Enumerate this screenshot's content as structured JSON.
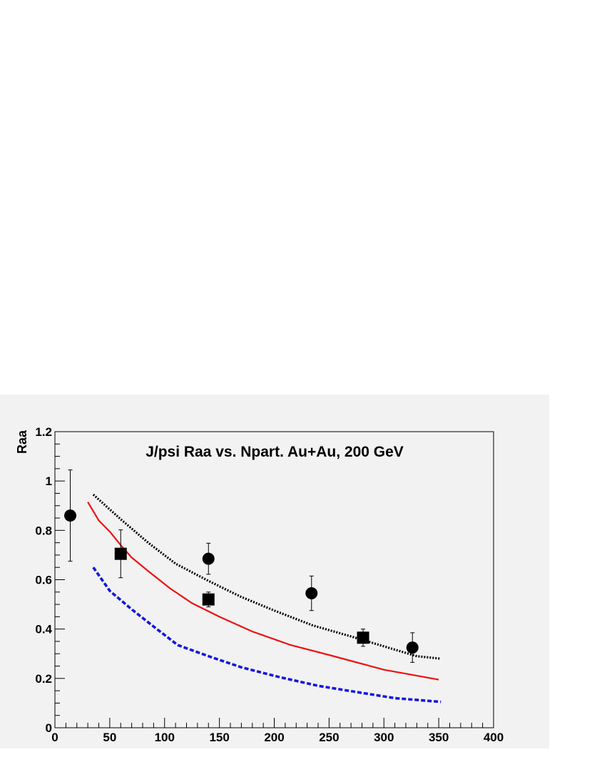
{
  "chart_data": {
    "type": "scatter",
    "title": "J/psi Raa vs. Npart. Au+Au, 200 GeV",
    "xlabel": "Npart",
    "ylabel": "Raa",
    "xlim": [
      0,
      400
    ],
    "ylim": [
      0,
      1.2
    ],
    "x_ticks": [
      0,
      50,
      100,
      150,
      200,
      250,
      300,
      350,
      400
    ],
    "x_tick_labels": [
      "0",
      "50",
      "100",
      "150",
      "200",
      "250",
      "300",
      "350",
      "400"
    ],
    "y_ticks": [
      0,
      0.2,
      0.4,
      0.6,
      0.8,
      1.0,
      1.2
    ],
    "y_tick_labels": [
      "0",
      "0.2",
      "0.4",
      "0.6",
      "0.8",
      "1",
      "1.2"
    ],
    "grid": false,
    "series": [
      {
        "marker": "circle",
        "color": "#000000",
        "points": [
          {
            "x": 14,
            "y": 0.86,
            "err": 0.185
          },
          {
            "x": 140,
            "y": 0.685,
            "err": 0.063
          },
          {
            "x": 234,
            "y": 0.545,
            "err": 0.07
          },
          {
            "x": 326,
            "y": 0.325,
            "err": 0.06
          }
        ]
      },
      {
        "marker": "square",
        "color": "#000000",
        "points": [
          {
            "x": 60,
            "y": 0.705,
            "err": 0.097
          },
          {
            "x": 140,
            "y": 0.52,
            "err": 0.03
          },
          {
            "x": 281,
            "y": 0.365,
            "err": 0.035
          }
        ]
      },
      {
        "type": "line",
        "style": "dotted",
        "color": "#000000",
        "x": [
          35,
          60,
          85,
          110,
          140,
          170,
          200,
          235,
          270,
          300,
          330,
          352
        ],
        "y": [
          0.945,
          0.845,
          0.75,
          0.665,
          0.595,
          0.53,
          0.475,
          0.415,
          0.37,
          0.33,
          0.29,
          0.28
        ]
      },
      {
        "type": "line",
        "style": "solid",
        "color": "#ee1111",
        "x": [
          30,
          40,
          50,
          60,
          70,
          85,
          105,
          125,
          150,
          180,
          215,
          250,
          300,
          350
        ],
        "y": [
          0.915,
          0.84,
          0.795,
          0.74,
          0.69,
          0.635,
          0.565,
          0.505,
          0.45,
          0.39,
          0.335,
          0.295,
          0.235,
          0.195
        ]
      },
      {
        "type": "line",
        "style": "dashed",
        "color": "#1515dd",
        "x": [
          35,
          50,
          70,
          90,
          112,
          140,
          170,
          205,
          240,
          275,
          310,
          352
        ],
        "y": [
          0.65,
          0.555,
          0.48,
          0.41,
          0.335,
          0.29,
          0.245,
          0.205,
          0.17,
          0.145,
          0.12,
          0.105
        ]
      }
    ]
  }
}
